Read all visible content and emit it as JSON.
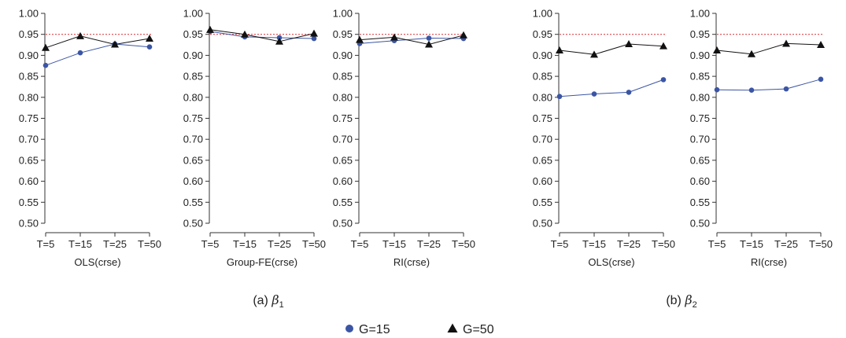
{
  "chart_data": [
    {
      "type": "line",
      "xlabel": "OLS(crse)",
      "categories": [
        "T=5",
        "T=15",
        "T=25",
        "T=50"
      ],
      "ylim": [
        0.5,
        1.0
      ],
      "yticks": [
        "0.50",
        "0.55",
        "0.60",
        "0.65",
        "0.70",
        "0.75",
        "0.80",
        "0.85",
        "0.90",
        "0.95",
        "1.00"
      ],
      "reference_line": 0.95,
      "series": [
        {
          "name": "G=15",
          "values": [
            0.876,
            0.906,
            0.927,
            0.92
          ]
        },
        {
          "name": "G=50",
          "values": [
            0.918,
            0.946,
            0.926,
            0.94
          ]
        }
      ]
    },
    {
      "type": "line",
      "xlabel": "Group-FE(crse)",
      "categories": [
        "T=5",
        "T=15",
        "T=25",
        "T=50"
      ],
      "ylim": [
        0.5,
        1.0
      ],
      "yticks": [
        "0.50",
        "0.55",
        "0.60",
        "0.65",
        "0.70",
        "0.75",
        "0.80",
        "0.85",
        "0.90",
        "0.95",
        "1.00"
      ],
      "reference_line": 0.95,
      "series": [
        {
          "name": "G=15",
          "values": [
            0.957,
            0.944,
            0.942,
            0.94
          ]
        },
        {
          "name": "G=50",
          "values": [
            0.961,
            0.95,
            0.933,
            0.952
          ]
        }
      ]
    },
    {
      "type": "line",
      "xlabel": "RI(crse)",
      "categories": [
        "T=5",
        "T=15",
        "T=25",
        "T=50"
      ],
      "ylim": [
        0.5,
        1.0
      ],
      "yticks": [
        "0.50",
        "0.55",
        "0.60",
        "0.65",
        "0.70",
        "0.75",
        "0.80",
        "0.85",
        "0.90",
        "0.95",
        "1.00"
      ],
      "reference_line": 0.95,
      "series": [
        {
          "name": "G=15",
          "values": [
            0.928,
            0.935,
            0.941,
            0.94
          ]
        },
        {
          "name": "G=50",
          "values": [
            0.937,
            0.943,
            0.926,
            0.948
          ]
        }
      ]
    },
    {
      "type": "line",
      "xlabel": "OLS(crse)",
      "categories": [
        "T=5",
        "T=15",
        "T=25",
        "T=50"
      ],
      "ylim": [
        0.5,
        1.0
      ],
      "yticks": [
        "0.50",
        "0.55",
        "0.60",
        "0.65",
        "0.70",
        "0.75",
        "0.80",
        "0.85",
        "0.90",
        "0.95",
        "1.00"
      ],
      "reference_line": 0.95,
      "series": [
        {
          "name": "G=15",
          "values": [
            0.802,
            0.808,
            0.812,
            0.842
          ]
        },
        {
          "name": "G=50",
          "values": [
            0.912,
            0.902,
            0.927,
            0.922
          ]
        }
      ]
    },
    {
      "type": "line",
      "xlabel": "RI(crse)",
      "categories": [
        "T=5",
        "T=15",
        "T=25",
        "T=50"
      ],
      "ylim": [
        0.5,
        1.0
      ],
      "yticks": [
        "0.50",
        "0.55",
        "0.60",
        "0.65",
        "0.70",
        "0.75",
        "0.80",
        "0.85",
        "0.90",
        "0.95",
        "1.00"
      ],
      "reference_line": 0.95,
      "series": [
        {
          "name": "G=15",
          "values": [
            0.818,
            0.817,
            0.82,
            0.843
          ]
        },
        {
          "name": "G=50",
          "values": [
            0.912,
            0.903,
            0.928,
            0.925
          ]
        }
      ]
    }
  ],
  "captions": [
    {
      "label": "(a) ",
      "symbol": "β",
      "subscript": "1"
    },
    {
      "label": "(b) ",
      "symbol": "β",
      "subscript": "2"
    }
  ],
  "legend": [
    {
      "name": "G=15",
      "marker": "circle"
    },
    {
      "name": "G=50",
      "marker": "triangle"
    }
  ],
  "colors": {
    "g15": "#3b55a5",
    "g50": "#111111",
    "reference": "#e0454a",
    "axis": "#333333"
  }
}
